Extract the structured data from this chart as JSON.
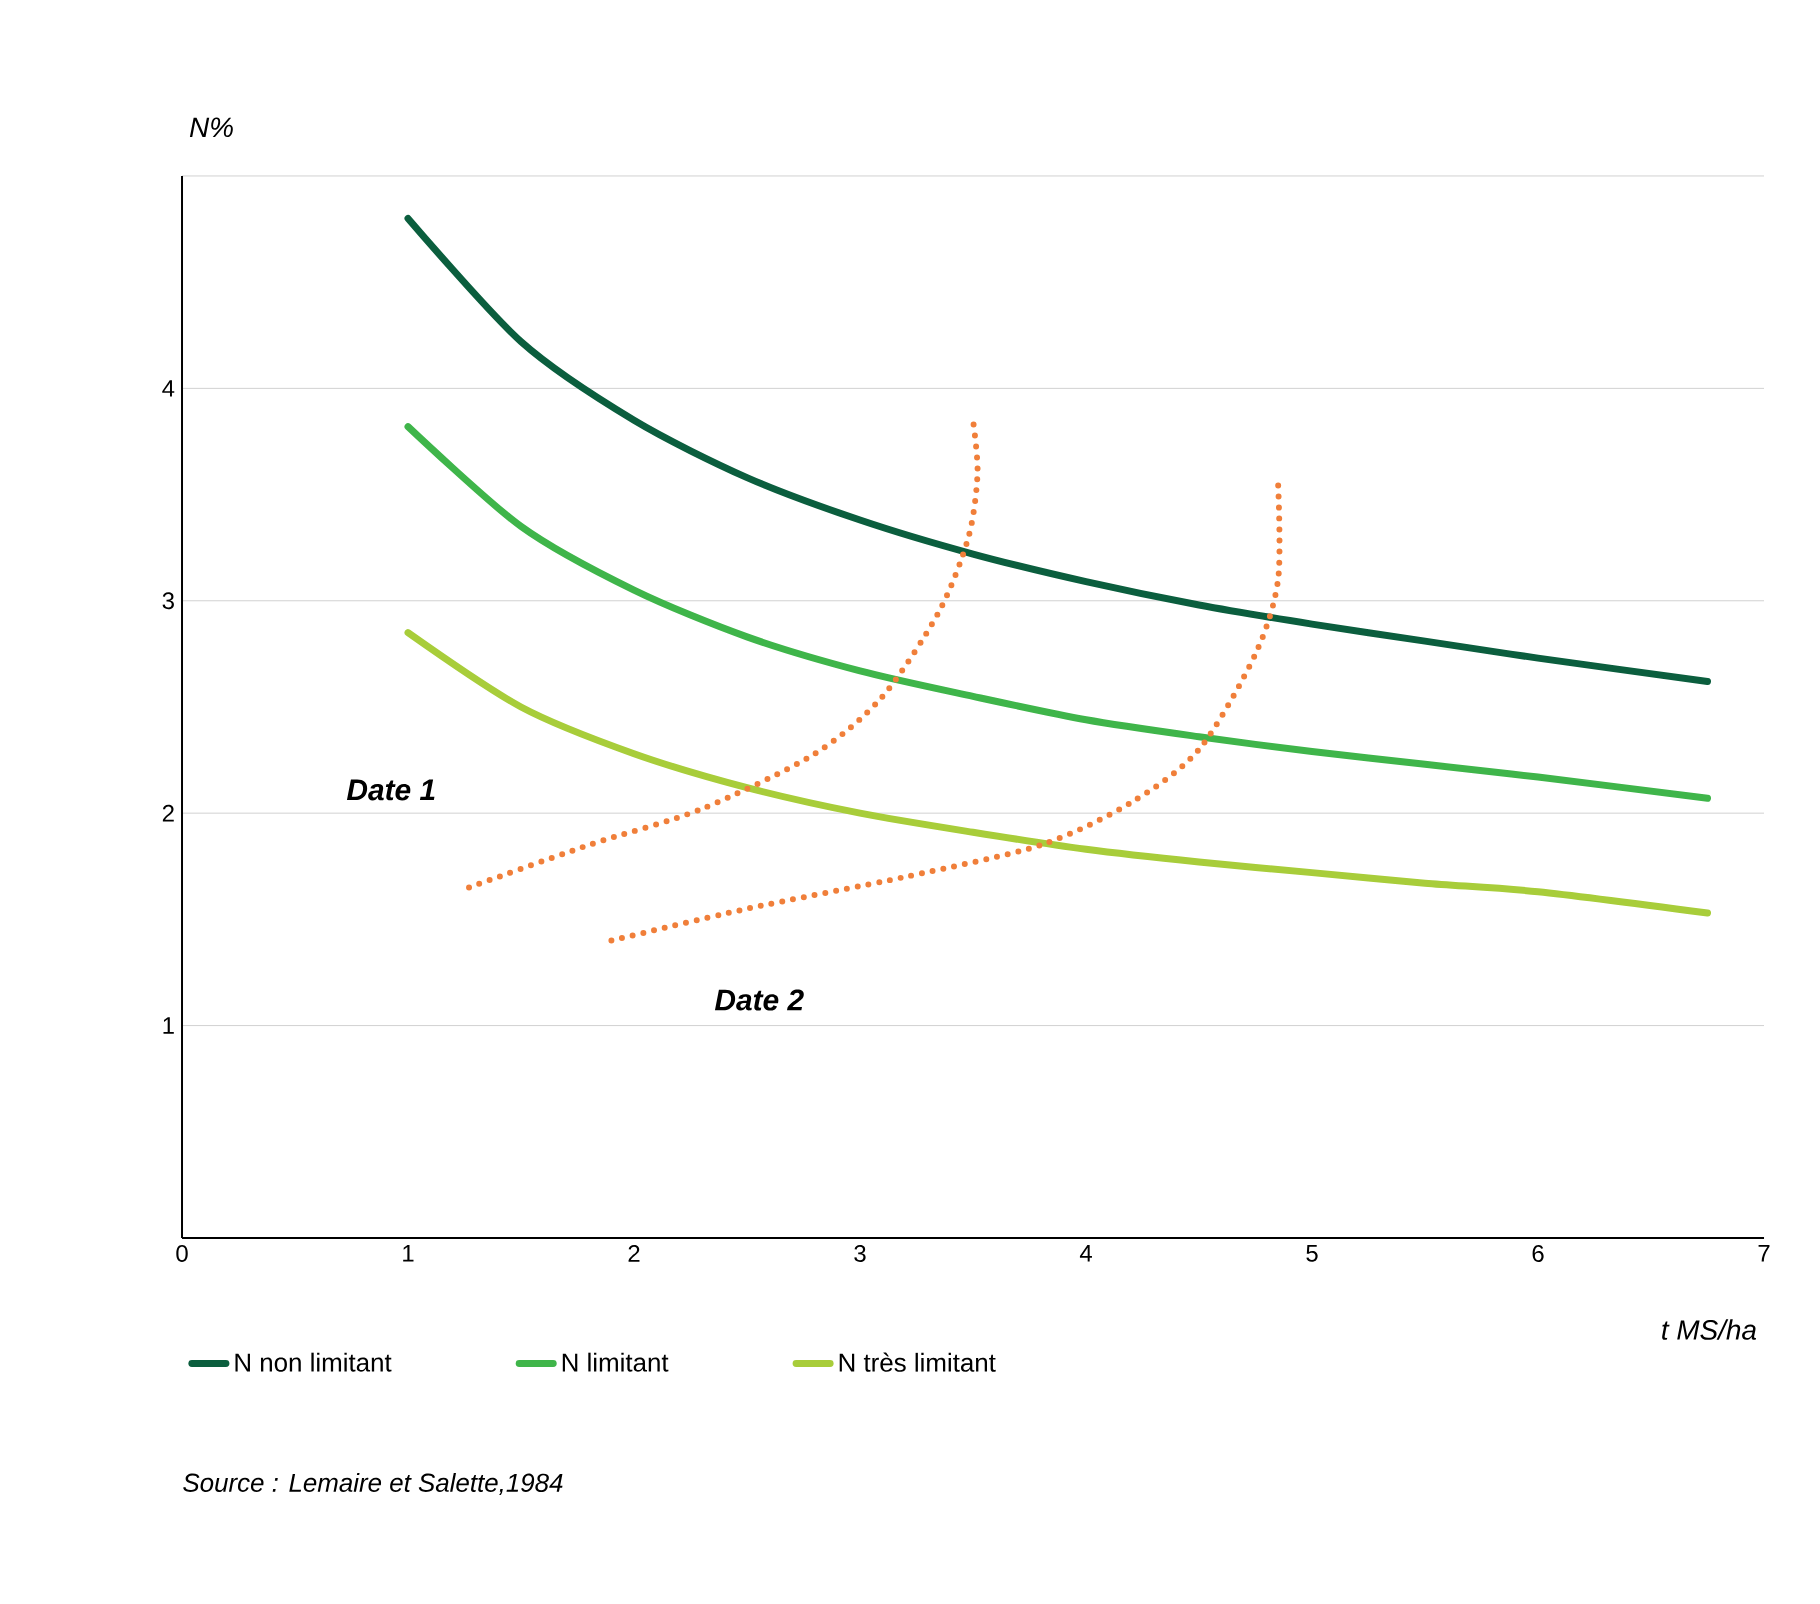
{
  "chart_data": {
    "type": "line",
    "xlabel": "t MS/ha",
    "ylabel": "N%",
    "xlim": [
      0,
      7
    ],
    "ylim": [
      0,
      5
    ],
    "xticks": [
      0,
      1,
      2,
      3,
      4,
      5,
      6,
      7
    ],
    "yticks": [
      1,
      2,
      3,
      4,
      {
        "value": 5,
        "label": null
      }
    ],
    "grid": "y",
    "legend": "bottom",
    "marker": "none",
    "series": [
      {
        "name": "N non limitant",
        "color": "#0b5e3e",
        "line_style": "solid",
        "x": [
          1,
          1.5,
          2,
          2.5,
          3,
          3.5,
          4,
          4.5,
          5,
          5.5,
          6,
          6.75
        ],
        "values": [
          4.8,
          4.22,
          3.85,
          3.58,
          3.38,
          3.22,
          3.09,
          2.98,
          2.89,
          2.81,
          2.73,
          2.62
        ]
      },
      {
        "name": "N limitant",
        "color": "#3fb54a",
        "line_style": "solid",
        "x": [
          1,
          1.5,
          2,
          2.5,
          3,
          3.5,
          4,
          4.5,
          5,
          5.5,
          6,
          6.75
        ],
        "values": [
          3.82,
          3.35,
          3.05,
          2.83,
          2.67,
          2.55,
          2.44,
          2.36,
          2.29,
          2.23,
          2.17,
          2.07
        ]
      },
      {
        "name": "N très limitant",
        "color": "#a8cd3a",
        "line_style": "solid",
        "x": [
          1,
          1.5,
          2,
          2.5,
          3,
          3.5,
          4,
          4.5,
          5,
          5.5,
          6,
          6.75
        ],
        "values": [
          2.85,
          2.5,
          2.28,
          2.12,
          2.0,
          1.91,
          1.83,
          1.77,
          1.72,
          1.67,
          1.63,
          1.53
        ]
      },
      {
        "color": "#f07f3a",
        "line_style": "dotted",
        "x": [
          1.27,
          1.8,
          2.3,
          2.8,
          3.1,
          3.35,
          3.48,
          3.52,
          3.5
        ],
        "values": [
          1.65,
          1.85,
          2.02,
          2.28,
          2.55,
          2.95,
          3.3,
          3.6,
          3.85
        ]
      },
      {
        "color": "#f07f3a",
        "line_style": "dotted",
        "x": [
          1.9,
          2.5,
          3.2,
          3.8,
          4.2,
          4.5,
          4.75,
          4.85,
          4.85
        ],
        "values": [
          1.4,
          1.55,
          1.7,
          1.85,
          2.05,
          2.3,
          2.75,
          3.1,
          3.55
        ]
      }
    ],
    "annotations": [
      "Date 1",
      "Date 2",
      "Source : Lemaire et Salette,1984"
    ]
  }
}
